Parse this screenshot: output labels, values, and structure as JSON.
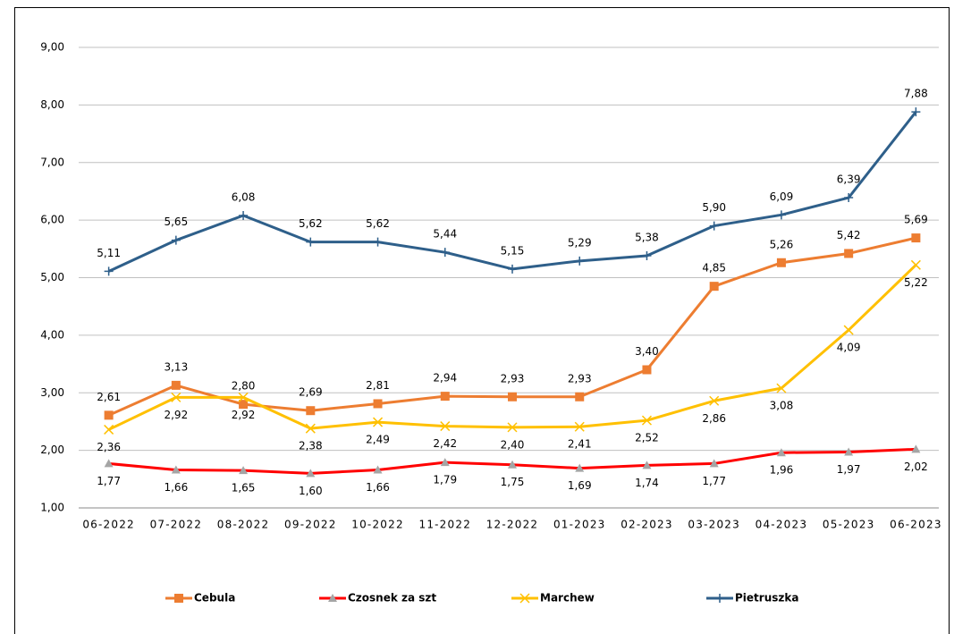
{
  "chart_data": {
    "type": "line",
    "categories": [
      "06-2022",
      "07-2022",
      "08-2022",
      "09-2022",
      "10-2022",
      "11-2022",
      "12-2022",
      "01-2023",
      "02-2023",
      "03-2023",
      "04-2023",
      "05-2023",
      "06-2023"
    ],
    "ylim": [
      1,
      9
    ],
    "yticks": [
      {
        "value": 1,
        "label": "1,00"
      },
      {
        "value": 2,
        "label": "2,00"
      },
      {
        "value": 3,
        "label": "3,00"
      },
      {
        "value": 4,
        "label": "4,00"
      },
      {
        "value": 5,
        "label": "5,00"
      },
      {
        "value": 6,
        "label": "6,00"
      },
      {
        "value": 7,
        "label": "7,00"
      },
      {
        "value": 8,
        "label": "8,00"
      },
      {
        "value": 9,
        "label": "9,00"
      }
    ],
    "grid": true,
    "legend": "bottom",
    "series": [
      {
        "name": "Cebula",
        "color": "#ED7D31",
        "marker": "square",
        "marker_color": "#ED7D31",
        "label_position": "above",
        "values": [
          2.61,
          3.13,
          2.8,
          2.69,
          2.81,
          2.94,
          2.93,
          2.93,
          3.4,
          4.85,
          5.26,
          5.42,
          5.69
        ],
        "value_labels": [
          "2,61",
          "3,13",
          "2,80",
          "2,69",
          "2,81",
          "2,94",
          "2,93",
          "2,93",
          "3,40",
          "4,85",
          "5,26",
          "5,42",
          "5,69"
        ]
      },
      {
        "name": "Czosnek za szt",
        "color": "#FF0000",
        "marker": "triangle",
        "marker_color": "#A5A5A5",
        "label_position": "below",
        "values": [
          1.77,
          1.66,
          1.65,
          1.6,
          1.66,
          1.79,
          1.75,
          1.69,
          1.74,
          1.77,
          1.96,
          1.97,
          2.02
        ],
        "value_labels": [
          "1,77",
          "1,66",
          "1,65",
          "1,60",
          "1,66",
          "1,79",
          "1,75",
          "1,69",
          "1,74",
          "1,77",
          "1,96",
          "1,97",
          "2,02"
        ]
      },
      {
        "name": "Marchew",
        "color": "#FFC000",
        "marker": "x",
        "marker_color": "#FFC000",
        "label_position": "below",
        "values": [
          2.36,
          2.92,
          2.92,
          2.38,
          2.49,
          2.42,
          2.4,
          2.41,
          2.52,
          2.86,
          3.08,
          4.09,
          5.22
        ],
        "value_labels": [
          "2,36",
          "2,92",
          "2,92",
          "2,38",
          "2,49",
          "2,42",
          "2,40",
          "2,41",
          "2,52",
          "2,86",
          "3,08",
          "4,09",
          "5,22"
        ]
      },
      {
        "name": "Pietruszka",
        "color": "#2E5F8A",
        "marker": "plus",
        "marker_color": "#2E5F8A",
        "label_position": "above",
        "values": [
          5.11,
          5.65,
          6.08,
          5.62,
          5.62,
          5.44,
          5.15,
          5.29,
          5.38,
          5.9,
          6.09,
          6.39,
          7.88
        ],
        "value_labels": [
          "5,11",
          "5,65",
          "6,08",
          "5,62",
          "5,62",
          "5,44",
          "5,15",
          "5,29",
          "5,38",
          "5,90",
          "6,09",
          "6,39",
          "7,88"
        ]
      }
    ]
  }
}
